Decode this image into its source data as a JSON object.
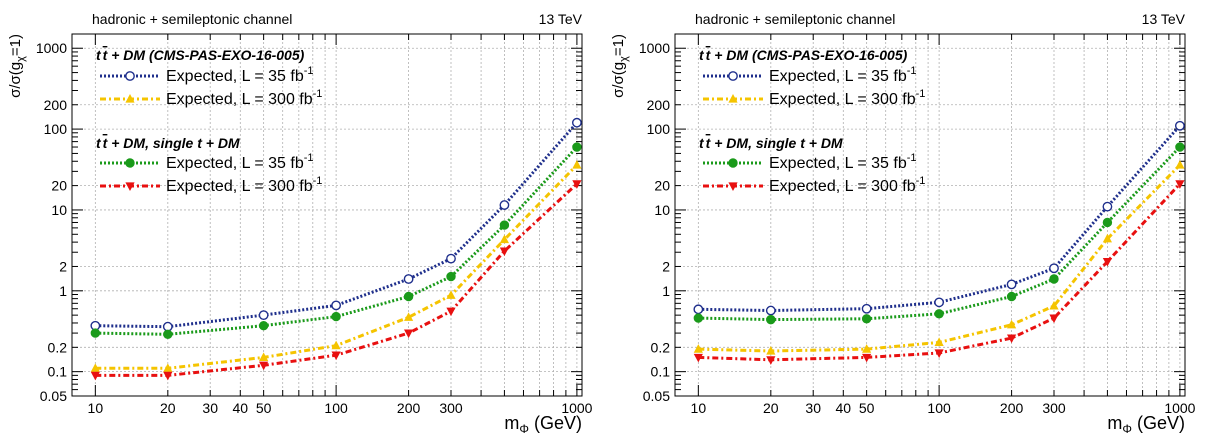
{
  "colors": {
    "exp35_ref": "#1f2f8c",
    "exp300_ref": "#f5c400",
    "exp35_comb": "#1a9a1a",
    "exp300_comb": "#e81010",
    "grid": "#b0b0b0",
    "axis": "#000000"
  },
  "chart_data": [
    {
      "type": "line",
      "header_left": "hadronic + semileptonic channel",
      "header_right": "13 TeV",
      "xlabel": "m",
      "xlabel_sub": "Φ",
      "xlabel_unit": " (GeV)",
      "ylabel": "σ/σ(g",
      "ylabel_sub": "χ",
      "ylabel_end": "=1)",
      "xscale": "log",
      "yscale": "log",
      "xlim": [
        8,
        1050
      ],
      "ylim": [
        0.05,
        1500
      ],
      "grid": true,
      "x_ticks": [
        10,
        20,
        30,
        40,
        50,
        100,
        200,
        300,
        1000
      ],
      "x_tick_labels": [
        "10",
        "20",
        "30",
        "40",
        "50",
        "100",
        "200",
        "300",
        "1000"
      ],
      "y_ticks": [
        0.05,
        0.1,
        0.2,
        1,
        2,
        10,
        20,
        100,
        200,
        1000
      ],
      "y_tick_labels": [
        "0.05",
        "0.1",
        "0.2",
        "1",
        "2",
        "10",
        "20",
        "100",
        "200",
        "1000"
      ],
      "legend_groups": [
        {
          "title": "t t̄ + DM (CMS-PAS-EXO-16-005)",
          "title_main": "t",
          "title_bar": "t",
          "title_rest": " + DM (CMS-PAS-EXO-16-005)"
        },
        {
          "title": "t t̄ + DM, single t + DM",
          "title_main": "t",
          "title_bar": "t",
          "title_rest": " + DM, single t + DM"
        }
      ],
      "series": [
        {
          "name": "Expected, L = 35 fb-1",
          "label_main": "Expected, L = 35 fb",
          "label_sup": "-1",
          "group": 0,
          "color_key": "exp35_ref",
          "marker": "open-circle",
          "dash": "2,2",
          "x": [
            10,
            20,
            50,
            100,
            200,
            300,
            500,
            1000
          ],
          "y": [
            0.37,
            0.36,
            0.5,
            0.66,
            1.4,
            2.5,
            11.5,
            120
          ]
        },
        {
          "name": "Expected, L = 300 fb-1",
          "label_main": "Expected, L = 300 fb",
          "label_sup": "-1",
          "group": 0,
          "color_key": "exp300_ref",
          "marker": "triangle-up",
          "dash": "6,3,2,3",
          "x": [
            10,
            20,
            50,
            100,
            200,
            300,
            500,
            1000
          ],
          "y": [
            0.11,
            0.11,
            0.15,
            0.21,
            0.47,
            0.88,
            4.3,
            36
          ]
        },
        {
          "name": "Expected, L = 35 fb-1",
          "label_main": "Expected, L = 35 fb",
          "label_sup": "-1",
          "group": 1,
          "color_key": "exp35_comb",
          "marker": "filled-circle",
          "dash": "2,2",
          "x": [
            10,
            20,
            50,
            100,
            200,
            300,
            500,
            1000
          ],
          "y": [
            0.3,
            0.29,
            0.37,
            0.48,
            0.85,
            1.5,
            6.5,
            60
          ]
        },
        {
          "name": "Expected, L = 300 fb-1",
          "label_main": "Expected, L = 300 fb",
          "label_sup": "-1",
          "group": 1,
          "color_key": "exp300_comb",
          "marker": "triangle-down",
          "dash": "6,3,2,3",
          "x": [
            10,
            20,
            50,
            100,
            200,
            300,
            500,
            1000
          ],
          "y": [
            0.09,
            0.09,
            0.12,
            0.16,
            0.3,
            0.56,
            3.1,
            21
          ]
        }
      ]
    },
    {
      "type": "line",
      "header_left": "hadronic + semileptonic channel",
      "header_right": "13 TeV",
      "xlabel": "m",
      "xlabel_sub": "Φ",
      "xlabel_unit": " (GeV)",
      "ylabel": "σ/σ(g",
      "ylabel_sub": "χ",
      "ylabel_end": "=1)",
      "xscale": "log",
      "yscale": "log",
      "xlim": [
        8,
        1050
      ],
      "ylim": [
        0.05,
        1500
      ],
      "grid": true,
      "x_ticks": [
        10,
        20,
        30,
        40,
        50,
        100,
        200,
        300,
        1000
      ],
      "x_tick_labels": [
        "10",
        "20",
        "30",
        "40",
        "50",
        "100",
        "200",
        "300",
        "1000"
      ],
      "y_ticks": [
        0.05,
        0.1,
        0.2,
        1,
        2,
        10,
        20,
        100,
        200,
        1000
      ],
      "y_tick_labels": [
        "0.05",
        "0.1",
        "0.2",
        "1",
        "2",
        "10",
        "20",
        "100",
        "200",
        "1000"
      ],
      "legend_groups": [
        {
          "title": "t t̄ + DM (CMS-PAS-EXO-16-005)",
          "title_main": "t",
          "title_bar": "t",
          "title_rest": " + DM (CMS-PAS-EXO-16-005)"
        },
        {
          "title": "t t̄ + DM, single t + DM",
          "title_main": "t",
          "title_bar": "t",
          "title_rest": " + DM, single t + DM"
        }
      ],
      "series": [
        {
          "name": "Expected, L = 35 fb-1",
          "label_main": "Expected, L = 35 fb",
          "label_sup": "-1",
          "group": 0,
          "color_key": "exp35_ref",
          "marker": "open-circle",
          "dash": "2,2",
          "x": [
            10,
            20,
            50,
            100,
            200,
            300,
            500,
            1000
          ],
          "y": [
            0.59,
            0.57,
            0.6,
            0.72,
            1.2,
            1.9,
            11,
            110
          ]
        },
        {
          "name": "Expected, L = 300 fb-1",
          "label_main": "Expected, L = 300 fb",
          "label_sup": "-1",
          "group": 0,
          "color_key": "exp300_ref",
          "marker": "triangle-up",
          "dash": "6,3,2,3",
          "x": [
            10,
            20,
            50,
            100,
            200,
            300,
            500,
            1000
          ],
          "y": [
            0.19,
            0.18,
            0.19,
            0.23,
            0.38,
            0.65,
            4.4,
            36
          ]
        },
        {
          "name": "Expected, L = 35 fb-1",
          "label_main": "Expected, L = 35 fb",
          "label_sup": "-1",
          "group": 1,
          "color_key": "exp35_comb",
          "marker": "filled-circle",
          "dash": "2,2",
          "x": [
            10,
            20,
            50,
            100,
            200,
            300,
            500,
            1000
          ],
          "y": [
            0.46,
            0.44,
            0.45,
            0.52,
            0.85,
            1.4,
            7,
            60
          ]
        },
        {
          "name": "Expected, L = 300 fb-1",
          "label_main": "Expected, L = 300 fb",
          "label_sup": "-1",
          "group": 1,
          "color_key": "exp300_comb",
          "marker": "triangle-down",
          "dash": "6,3,2,3",
          "x": [
            10,
            20,
            50,
            100,
            200,
            300,
            500,
            1000
          ],
          "y": [
            0.15,
            0.14,
            0.15,
            0.17,
            0.26,
            0.46,
            2.3,
            21
          ]
        }
      ]
    }
  ]
}
